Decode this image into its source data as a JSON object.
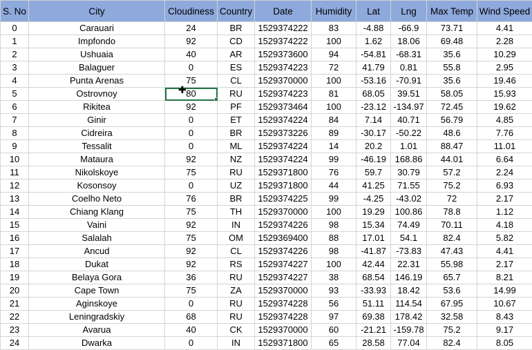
{
  "headers": [
    "S. No",
    "City",
    "Cloudiness",
    "Country",
    "Date",
    "Humidity",
    "Lat",
    "Lng",
    "Max Temp",
    "Wind Speed"
  ],
  "rows": [
    [
      "0",
      "Carauari",
      "24",
      "BR",
      "1529374222",
      "83",
      "-4.88",
      "-66.9",
      "73.71",
      "4.41"
    ],
    [
      "1",
      "Impfondo",
      "92",
      "CD",
      "1529374222",
      "100",
      "1.62",
      "18.06",
      "69.48",
      "2.28"
    ],
    [
      "2",
      "Ushuaia",
      "40",
      "AR",
      "1529373600",
      "94",
      "-54.81",
      "-68.31",
      "35.6",
      "10.29"
    ],
    [
      "3",
      "Balaguer",
      "0",
      "ES",
      "1529374223",
      "72",
      "41.79",
      "0.81",
      "55.8",
      "2.95"
    ],
    [
      "4",
      "Punta Arenas",
      "75",
      "CL",
      "1529370000",
      "100",
      "-53.16",
      "-70.91",
      "35.6",
      "19.46"
    ],
    [
      "5",
      "Ostrovnoy",
      "80",
      "RU",
      "1529374223",
      "81",
      "68.05",
      "39.51",
      "58.05",
      "15.93"
    ],
    [
      "6",
      "Rikitea",
      "92",
      "PF",
      "1529373464",
      "100",
      "-23.12",
      "-134.97",
      "72.45",
      "19.62"
    ],
    [
      "7",
      "Ginir",
      "0",
      "ET",
      "1529374224",
      "84",
      "7.14",
      "40.71",
      "56.79",
      "4.85"
    ],
    [
      "8",
      "Cidreira",
      "0",
      "BR",
      "1529373226",
      "89",
      "-30.17",
      "-50.22",
      "48.6",
      "7.76"
    ],
    [
      "9",
      "Tessalit",
      "0",
      "ML",
      "1529374224",
      "14",
      "20.2",
      "1.01",
      "88.47",
      "11.01"
    ],
    [
      "10",
      "Mataura",
      "92",
      "NZ",
      "1529374224",
      "99",
      "-46.19",
      "168.86",
      "44.01",
      "6.64"
    ],
    [
      "11",
      "Nikolskoye",
      "75",
      "RU",
      "1529371800",
      "76",
      "59.7",
      "30.79",
      "57.2",
      "2.24"
    ],
    [
      "12",
      "Kosonsoy",
      "0",
      "UZ",
      "1529371800",
      "44",
      "41.25",
      "71.55",
      "75.2",
      "6.93"
    ],
    [
      "13",
      "Coelho Neto",
      "76",
      "BR",
      "1529374225",
      "99",
      "-4.25",
      "-43.02",
      "72",
      "2.17"
    ],
    [
      "14",
      "Chiang Klang",
      "75",
      "TH",
      "1529370000",
      "100",
      "19.29",
      "100.86",
      "78.8",
      "1.12"
    ],
    [
      "15",
      "Vaini",
      "92",
      "IN",
      "1529374226",
      "98",
      "15.34",
      "74.49",
      "70.11",
      "4.18"
    ],
    [
      "16",
      "Salalah",
      "75",
      "OM",
      "1529369400",
      "88",
      "17.01",
      "54.1",
      "82.4",
      "5.82"
    ],
    [
      "17",
      "Ancud",
      "92",
      "CL",
      "1529374226",
      "98",
      "-41.87",
      "-73.83",
      "47.43",
      "4.41"
    ],
    [
      "18",
      "Dukat",
      "92",
      "RS",
      "1529374227",
      "100",
      "42.44",
      "22.31",
      "55.98",
      "2.17"
    ],
    [
      "19",
      "Belaya Gora",
      "36",
      "RU",
      "1529374227",
      "38",
      "68.54",
      "146.19",
      "65.7",
      "8.21"
    ],
    [
      "20",
      "Cape Town",
      "75",
      "ZA",
      "1529370000",
      "93",
      "-33.93",
      "18.42",
      "53.6",
      "14.99"
    ],
    [
      "21",
      "Aginskoye",
      "0",
      "RU",
      "1529374228",
      "56",
      "51.11",
      "114.54",
      "67.95",
      "10.67"
    ],
    [
      "22",
      "Leningradskiy",
      "68",
      "RU",
      "1529374228",
      "97",
      "69.38",
      "178.42",
      "32.58",
      "8.43"
    ],
    [
      "23",
      "Avarua",
      "40",
      "CK",
      "1529370000",
      "60",
      "-21.21",
      "-159.78",
      "75.2",
      "9.17"
    ],
    [
      "24",
      "Dwarka",
      "0",
      "IN",
      "1529371800",
      "65",
      "28.58",
      "77.04",
      "82.4",
      "8.05"
    ]
  ],
  "selected": {
    "row": 5,
    "col": 2
  },
  "colors": {
    "header_bg": "#8ea9db",
    "selection": "#217346",
    "gridline": "#d4d4d4"
  }
}
